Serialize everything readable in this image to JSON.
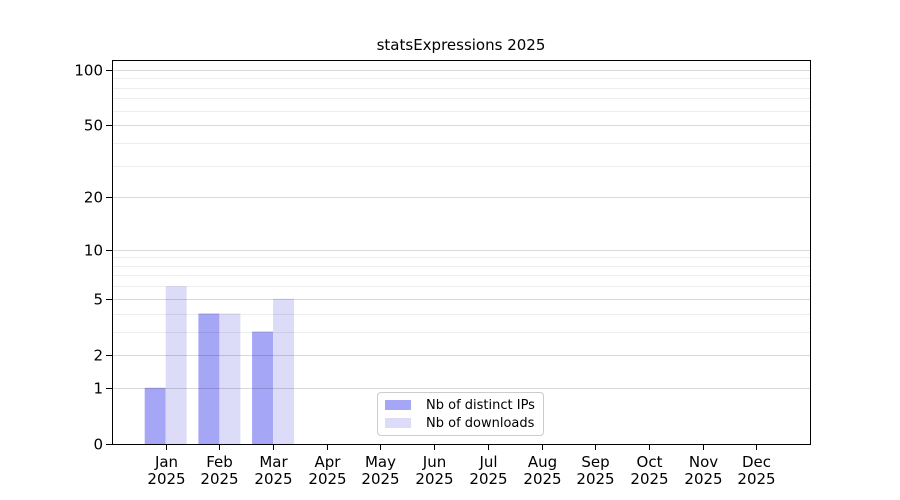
{
  "chart_data": {
    "type": "bar",
    "title": "statsExpressions 2025",
    "x_categories": [
      "Jan",
      "Feb",
      "Mar",
      "Apr",
      "May",
      "Jun",
      "Jul",
      "Aug",
      "Sep",
      "Oct",
      "Nov",
      "Dec"
    ],
    "x_sublabel": "2025",
    "series": [
      {
        "name": "Nb of distinct IPs",
        "color": "#a6a6f6",
        "values": [
          1,
          4,
          3,
          0,
          0,
          0,
          0,
          0,
          0,
          0,
          0,
          0
        ]
      },
      {
        "name": "Nb of downloads",
        "color": "#dcdcf8",
        "values": [
          6,
          4,
          5,
          0,
          0,
          0,
          0,
          0,
          0,
          0,
          0,
          0
        ]
      }
    ],
    "y_scale": "log1p",
    "ylim": [
      0,
      113
    ],
    "y_tick_values": [
      0,
      1,
      2,
      5,
      10,
      20,
      50,
      100
    ],
    "y_minor_gridlines": [
      3,
      4,
      6,
      7,
      8,
      9,
      30,
      40,
      60,
      70,
      80,
      90
    ],
    "grid": "horizontal",
    "grid_above_bars": true,
    "legend_position": "lower-center"
  },
  "colors": {
    "background": "#ffffff",
    "axis": "#000000",
    "grid_major": "rgba(0,0,0,0.15)",
    "grid_minor": "rgba(0,0,0,0.07)",
    "tick_text": "#000000",
    "legend_border": "#cccccc"
  }
}
